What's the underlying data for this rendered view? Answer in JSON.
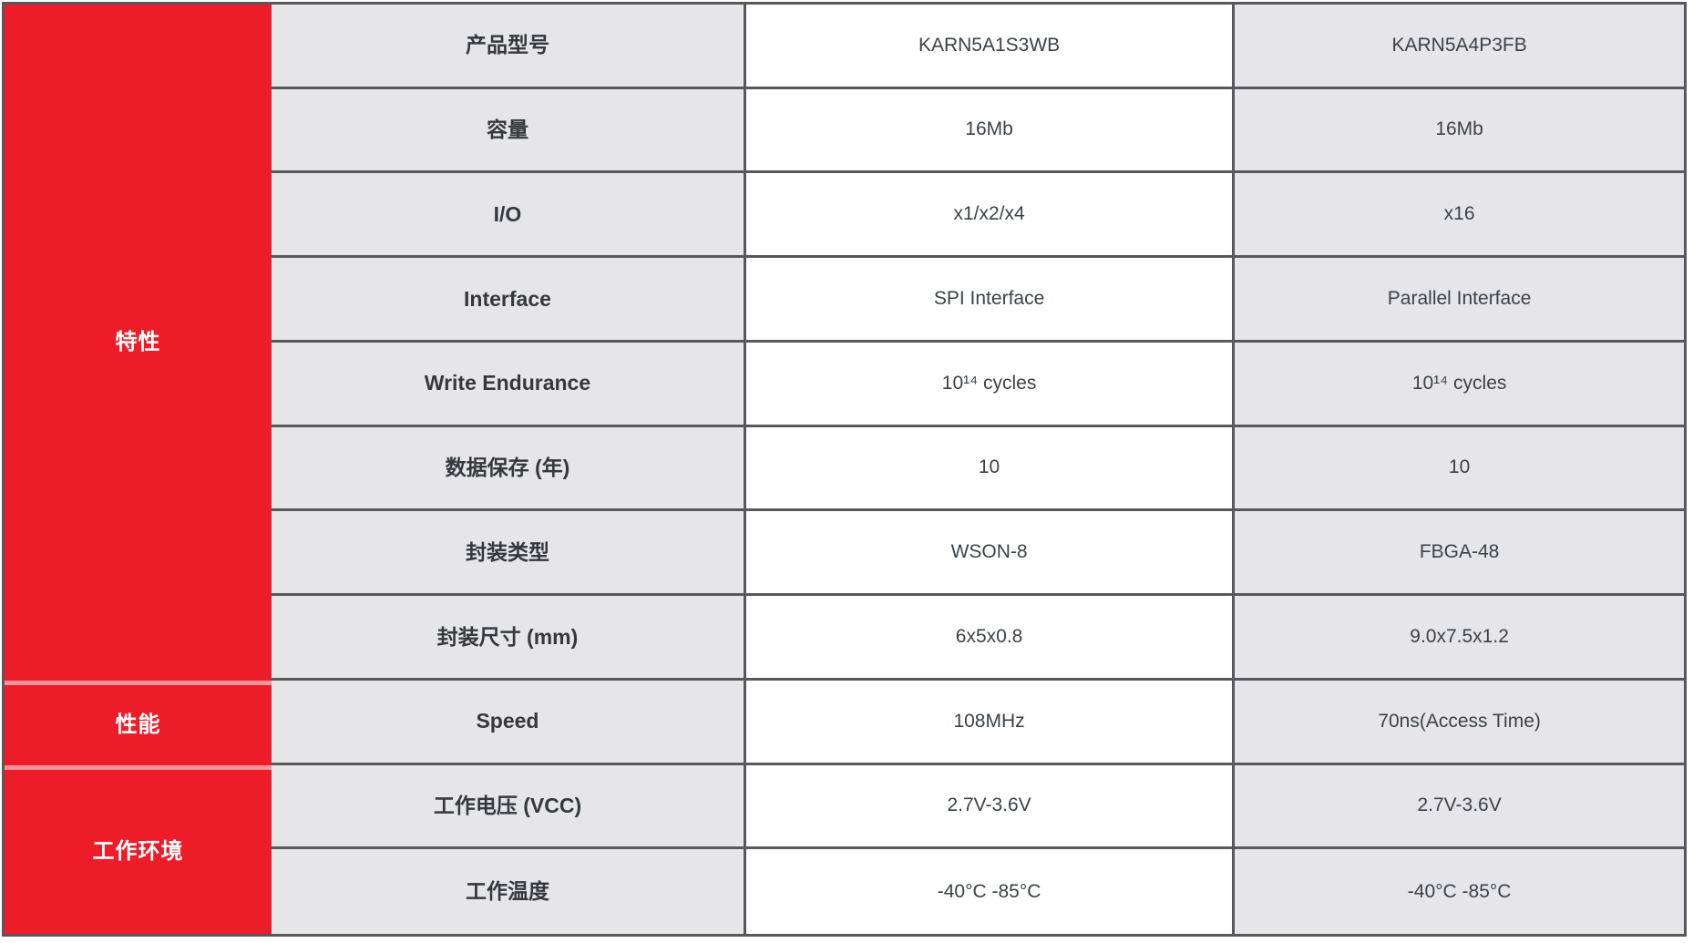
{
  "table": {
    "colors": {
      "accent_red": "#ED1C29",
      "label_gray": "#E6E6E8",
      "border_dark": "#57585C",
      "divider_pink": "#F2939B",
      "text_dark": "#35393B",
      "text_value": "#3B4248",
      "text_white": "#FFFFFF"
    },
    "groups": [
      {
        "label": "特性",
        "rowspan": 8
      },
      {
        "label": "性能",
        "rowspan": 1
      },
      {
        "label": "工作环境",
        "rowspan": 2
      }
    ],
    "rows": [
      {
        "group": 0,
        "property": "产品型号",
        "product_a": "KARN5A1S3WB",
        "product_b": "KARN5A4P3FB"
      },
      {
        "group": 0,
        "property": "容量",
        "product_a": "16Mb",
        "product_b": "16Mb"
      },
      {
        "group": 0,
        "property": "I/O",
        "product_a": "x1/x2/x4",
        "product_b": "x16"
      },
      {
        "group": 0,
        "property": "Interface",
        "product_a": "SPI Interface",
        "product_b": "Parallel Interface"
      },
      {
        "group": 0,
        "property": "Write Endurance",
        "product_a": "10¹⁴ cycles",
        "product_b": "10¹⁴ cycles"
      },
      {
        "group": 0,
        "property": "数据保存 (年)",
        "product_a": "10",
        "product_b": "10"
      },
      {
        "group": 0,
        "property": "封装类型",
        "product_a": "WSON-8",
        "product_b": "FBGA-48"
      },
      {
        "group": 0,
        "property": "封装尺寸 (mm)",
        "product_a": "6x5x0.8",
        "product_b": "9.0x7.5x1.2"
      },
      {
        "group": 1,
        "property": "Speed",
        "product_a": "108MHz",
        "product_b": "70ns(Access Time)"
      },
      {
        "group": 2,
        "property": "工作电压 (VCC)",
        "product_a": "2.7V-3.6V",
        "product_b": "2.7V-3.6V"
      },
      {
        "group": 2,
        "property": "工作温度",
        "product_a": "-40°C -85°C",
        "product_b": "-40°C -85°C"
      }
    ]
  }
}
